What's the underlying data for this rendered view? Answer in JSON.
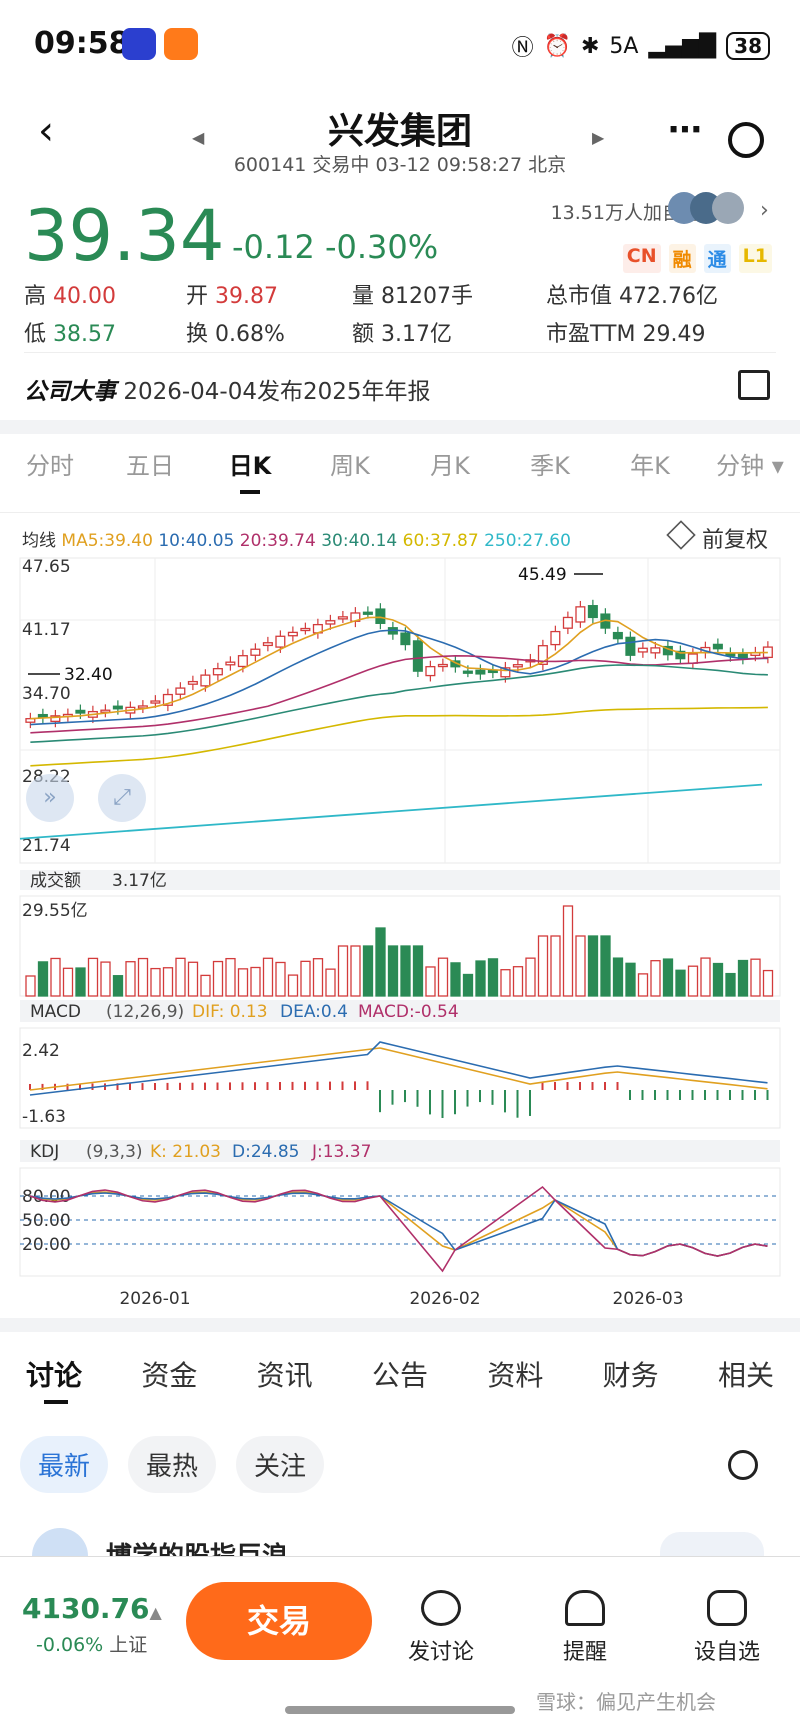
{
  "status": {
    "time": "09:58",
    "battery": "38",
    "network": "5A"
  },
  "header": {
    "title": "兴发集团",
    "code": "600141",
    "state": "交易中",
    "datetime": "03-12 09:58:27",
    "location": "北京"
  },
  "quote": {
    "price": "39.34",
    "change": "-0.12",
    "change_pct": "-0.30%",
    "followers": "13.51万人加自选",
    "tags": [
      {
        "t": "CN",
        "c": "#e8512a"
      },
      {
        "t": "融",
        "c": "#f08a00"
      },
      {
        "t": "通",
        "c": "#2b8be6"
      },
      {
        "t": "L1",
        "c": "#e6b800"
      }
    ]
  },
  "stats": [
    {
      "label": "高",
      "value": "40.00",
      "cls": "red"
    },
    {
      "label": "开",
      "value": "39.87",
      "cls": "red"
    },
    {
      "label": "量",
      "value": "81207手",
      "cls": ""
    },
    {
      "label": "总市值",
      "value": "472.76亿",
      "cls": ""
    },
    {
      "label": "低",
      "value": "38.57",
      "cls": "green"
    },
    {
      "label": "换",
      "value": "0.68%",
      "cls": ""
    },
    {
      "label": "额",
      "value": "3.17亿",
      "cls": ""
    },
    {
      "label": "市盈TTM",
      "value": "29.49",
      "cls": ""
    }
  ],
  "event": {
    "label": "公司大事",
    "text": "2026-04-04发布2025年年报"
  },
  "chart_tabs": [
    "分时",
    "五日",
    "日K",
    "周K",
    "月K",
    "季K",
    "年K",
    "分钟 ▾"
  ],
  "ma": {
    "label": "均线",
    "items": [
      {
        "t": "MA5:39.40",
        "c": "#e0a020"
      },
      {
        "t": "10:40.05",
        "c": "#2b6cb0"
      },
      {
        "t": "20:39.74",
        "c": "#b0306a"
      },
      {
        "t": "30:40.14",
        "c": "#2a8a75"
      },
      {
        "t": "60:37.87",
        "c": "#d4b800"
      },
      {
        "t": "250:27.60",
        "c": "#2fb8c8"
      }
    ],
    "adjust": "前复权"
  },
  "kline": {
    "y_labels": [
      "47.65",
      "41.17",
      "34.70",
      "28.22",
      "21.74"
    ],
    "high_mark": "45.49",
    "low_mark": "32.40",
    "x_labels": [
      "2026-01",
      "2026-02",
      "2026-03"
    ]
  },
  "volume": {
    "label": "成交额",
    "value": "3.17亿",
    "max": "29.55亿"
  },
  "macd": {
    "label": "MACD",
    "params": "(12,26,9)",
    "dif": "DIF: 0.13",
    "dea": "DEA:0.4",
    "macd": "MACD:-0.54",
    "top": "2.42",
    "bottom": "-1.63"
  },
  "kdj": {
    "label": "KDJ",
    "params": "(9,3,3)",
    "k": "K: 21.03",
    "d": "D:24.85",
    "j": "J:13.37",
    "levels": [
      "80.00",
      "50.00",
      "20.00"
    ]
  },
  "bottom_tabs": [
    "讨论",
    "资金",
    "资讯",
    "公告",
    "资料",
    "财务",
    "相关"
  ],
  "filters": [
    "最新",
    "最热",
    "关注"
  ],
  "feed_preview": "博学的股指巨浪",
  "footer": {
    "index_value": "4130.76",
    "index_change": "-0.06%",
    "index_name": "上证",
    "trade": "交易",
    "btn1": "发讨论",
    "btn2": "提醒",
    "btn3": "设自选",
    "watermark": "雪球：偏见产生机会"
  }
}
